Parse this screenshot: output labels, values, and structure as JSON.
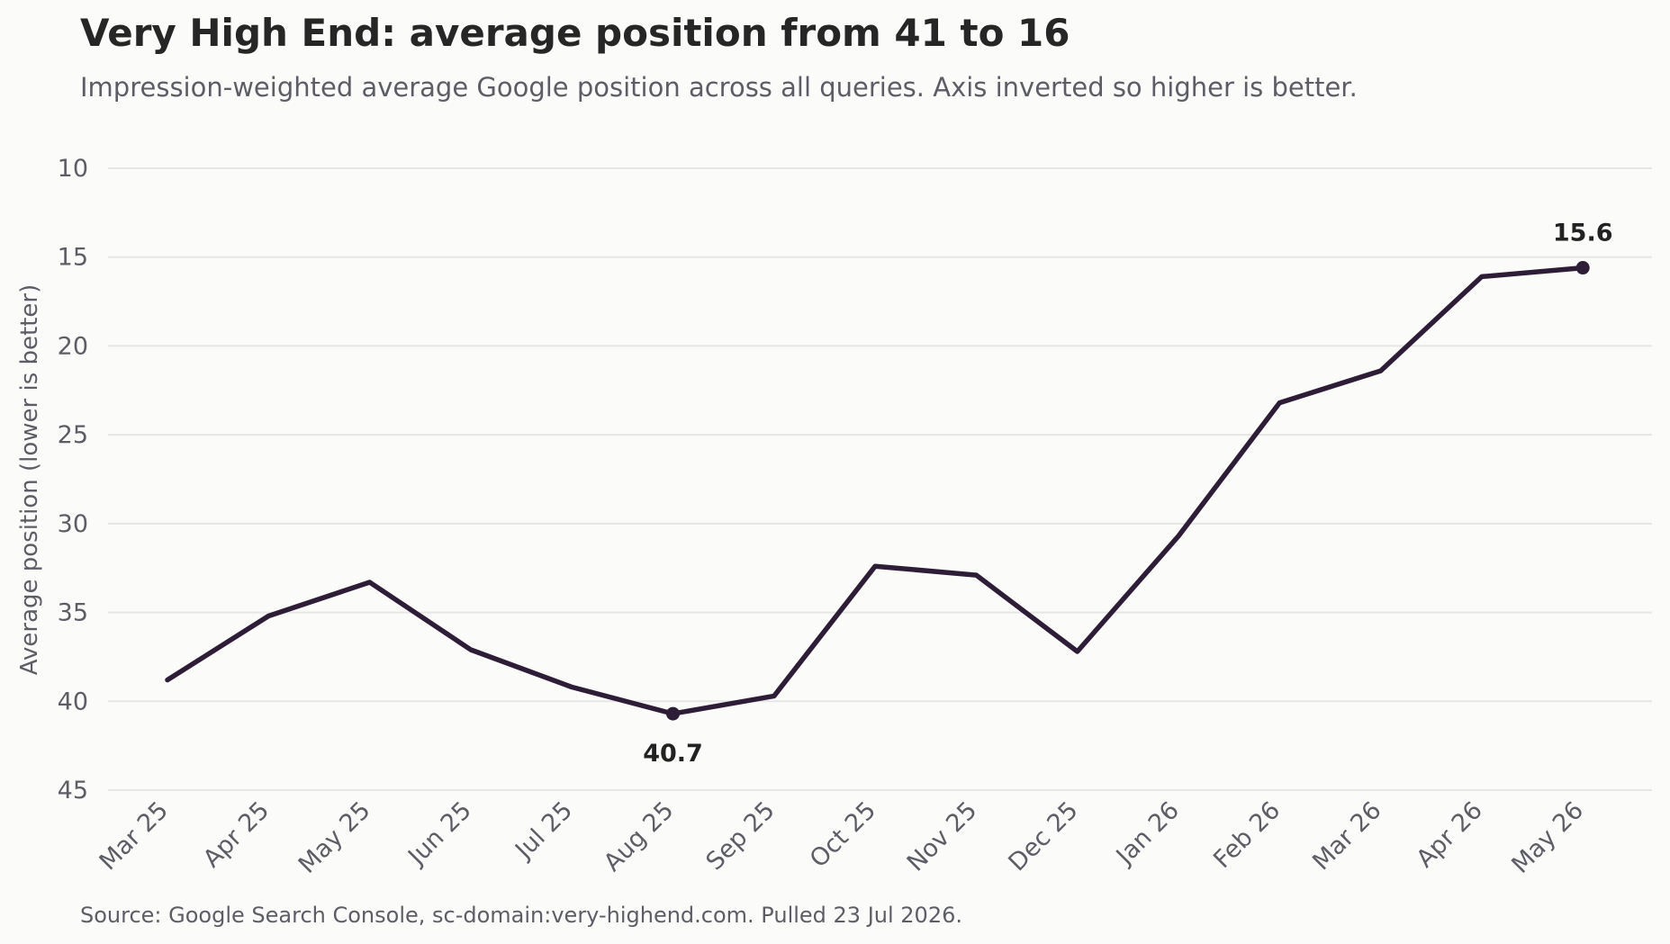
{
  "title": "Very High End: average position from 41 to 16",
  "subtitle": "Impression-weighted average Google position across all queries. Axis inverted so higher is better.",
  "source": "Source: Google Search Console, sc-domain:very-highend.com. Pulled 23 Jul 2026.",
  "colors": {
    "line": "#2d1d36",
    "grid": "#e6e6e6",
    "tick_text": "#5d5d66",
    "label_text": "#222222"
  },
  "chart_data": {
    "type": "line",
    "title": "Very High End: average position from 41 to 16",
    "subtitle": "Impression-weighted average Google position across all queries. Axis inverted so higher is better.",
    "xlabel": "",
    "ylabel": "Average position (lower is better)",
    "y_inverted": true,
    "ylim": [
      45,
      10
    ],
    "yticks": [
      10,
      15,
      20,
      25,
      30,
      35,
      40,
      45
    ],
    "grid": "horizontal",
    "categories": [
      "Mar 25",
      "Apr 25",
      "May 25",
      "Jun 25",
      "Jul 25",
      "Aug 25",
      "Sep 25",
      "Oct 25",
      "Nov 25",
      "Dec 25",
      "Jan 26",
      "Feb 26",
      "Mar 26",
      "Apr 26",
      "May 26"
    ],
    "series": [
      {
        "values": [
          38.8,
          35.2,
          33.3,
          37.1,
          39.2,
          40.7,
          39.7,
          32.4,
          32.9,
          37.2,
          30.7,
          23.2,
          21.4,
          16.1,
          15.6
        ]
      }
    ],
    "annotations": [
      {
        "category": "Aug 25",
        "value": 40.7,
        "text": "40.7",
        "position": "below"
      },
      {
        "category": "May 26",
        "value": 15.6,
        "text": "15.6",
        "position": "above"
      }
    ]
  }
}
